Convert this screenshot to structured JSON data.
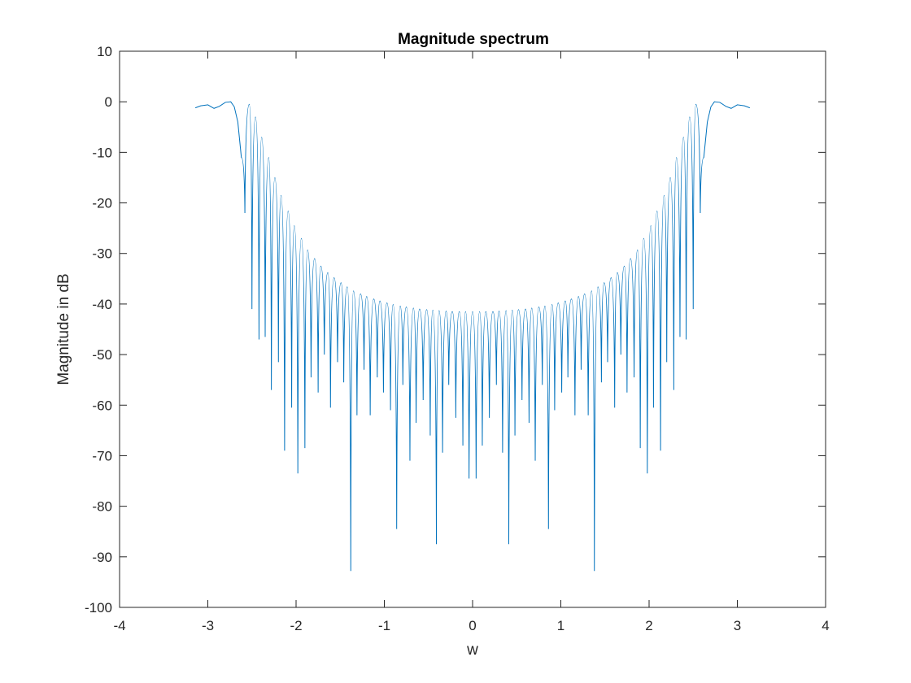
{
  "chart_data": {
    "type": "line",
    "title": "Magnitude spectrum",
    "xlabel": "w",
    "ylabel": "Magnitude in dB",
    "xlim": [
      -4,
      4
    ],
    "ylim": [
      -100,
      10
    ],
    "xticks": [
      -4,
      -3,
      -2,
      -1,
      0,
      1,
      2,
      3,
      4
    ],
    "yticks": [
      10,
      0,
      -10,
      -20,
      -30,
      -40,
      -50,
      -60,
      -70,
      -80,
      -90,
      -100
    ],
    "grid": false,
    "legend": "none",
    "line_color": "#0072BD",
    "series": [
      {
        "x": [
          -3.1416,
          -3.08,
          -3.0,
          -2.93,
          -2.87,
          -2.8,
          -2.74,
          -2.7,
          -2.66,
          -2.62,
          -2.58,
          -2.55
        ],
        "y": [
          -1.2,
          -0.8,
          -0.6,
          -1.3,
          -0.9,
          -0.1,
          0.0,
          -1.0,
          -4.0,
          -11.0,
          -22.0,
          -41.0
        ]
      },
      {
        "x": [
          0.08,
          0.15,
          0.23,
          0.3,
          0.38,
          0.45,
          0.52,
          0.6,
          0.67,
          0.75,
          0.82,
          0.9,
          0.97,
          1.05,
          1.12,
          1.2,
          1.27,
          1.35,
          1.42,
          1.49,
          1.57,
          1.64,
          1.72,
          1.79,
          1.87,
          1.94,
          2.02,
          2.09,
          2.17,
          2.24,
          2.31,
          2.39,
          2.46,
          2.53
        ],
        "y": [
          -41.5,
          -41.5,
          -41.5,
          -41.4,
          -41.3,
          -41.2,
          -41.1,
          -41.0,
          -40.8,
          -40.6,
          -40.4,
          -40.1,
          -39.8,
          -39.4,
          -39.0,
          -38.5,
          -38.0,
          -37.4,
          -36.6,
          -35.8,
          -34.8,
          -33.8,
          -32.5,
          -31.0,
          -29.3,
          -27.0,
          -24.5,
          -21.6,
          -18.5,
          -15.0,
          -11.0,
          -7.0,
          -3.0,
          -0.5
        ]
      },
      {
        "x": [
          0.04,
          0.11,
          0.19,
          0.27,
          0.34,
          0.41,
          0.48,
          0.56,
          0.64,
          0.71,
          0.79,
          0.86,
          0.93,
          1.01,
          1.08,
          1.16,
          1.23,
          1.31,
          1.38,
          1.46,
          1.53,
          1.61,
          1.68,
          1.75,
          1.83,
          1.9,
          1.98,
          2.05,
          2.13,
          2.2,
          2.28,
          2.35,
          2.42,
          2.5
        ],
        "y": [
          -74.5,
          -68.0,
          -62.5,
          -56.0,
          -69.4,
          -87.5,
          -66.0,
          -59.0,
          -63.5,
          -71.0,
          -56.0,
          -84.5,
          -61.0,
          -57.5,
          -54.5,
          -62.0,
          -53.0,
          -62.0,
          -92.8,
          -55.5,
          -51.5,
          -60.5,
          -50.0,
          -57.5,
          -54.5,
          -68.5,
          -73.5,
          -60.5,
          -69.0,
          -51.5,
          -57.0,
          -46.5,
          -47.0,
          -41.0
        ]
      }
    ]
  }
}
